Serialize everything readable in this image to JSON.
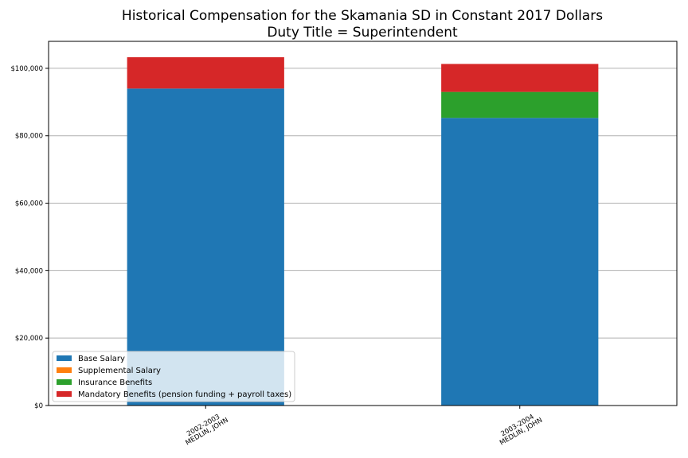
{
  "chart_data": {
    "type": "bar",
    "stacked": true,
    "title": "Historical Compensation for the Skamania SD in Constant 2017 Dollars",
    "subtitle": "Duty Title = Superintendent",
    "xlabel": "",
    "ylabel": "",
    "categories": [
      [
        "2002-2003",
        "MEDLIN, JOHN"
      ],
      [
        "2003-2004",
        "MEDLIN, JOHN"
      ]
    ],
    "ylim": [
      0,
      108000
    ],
    "yticks": [
      0,
      20000,
      40000,
      60000,
      80000,
      100000
    ],
    "ytick_labels": [
      "$0",
      "$20,000",
      "$40,000",
      "$60,000",
      "$80,000",
      "$100,000"
    ],
    "grid": "horizontal",
    "legend_position": "bottom-left",
    "series": [
      {
        "name": "Base Salary",
        "color": "#1f77b4",
        "values": [
          94000,
          85300
        ]
      },
      {
        "name": "Supplemental Salary",
        "color": "#ff7f0e",
        "values": [
          0,
          0
        ]
      },
      {
        "name": "Insurance Benefits",
        "color": "#2ca02c",
        "values": [
          0,
          7700
        ]
      },
      {
        "name": "Mandatory Benefits (pension funding + payroll taxes)",
        "color": "#d62728",
        "values": [
          9300,
          8300
        ]
      }
    ]
  }
}
